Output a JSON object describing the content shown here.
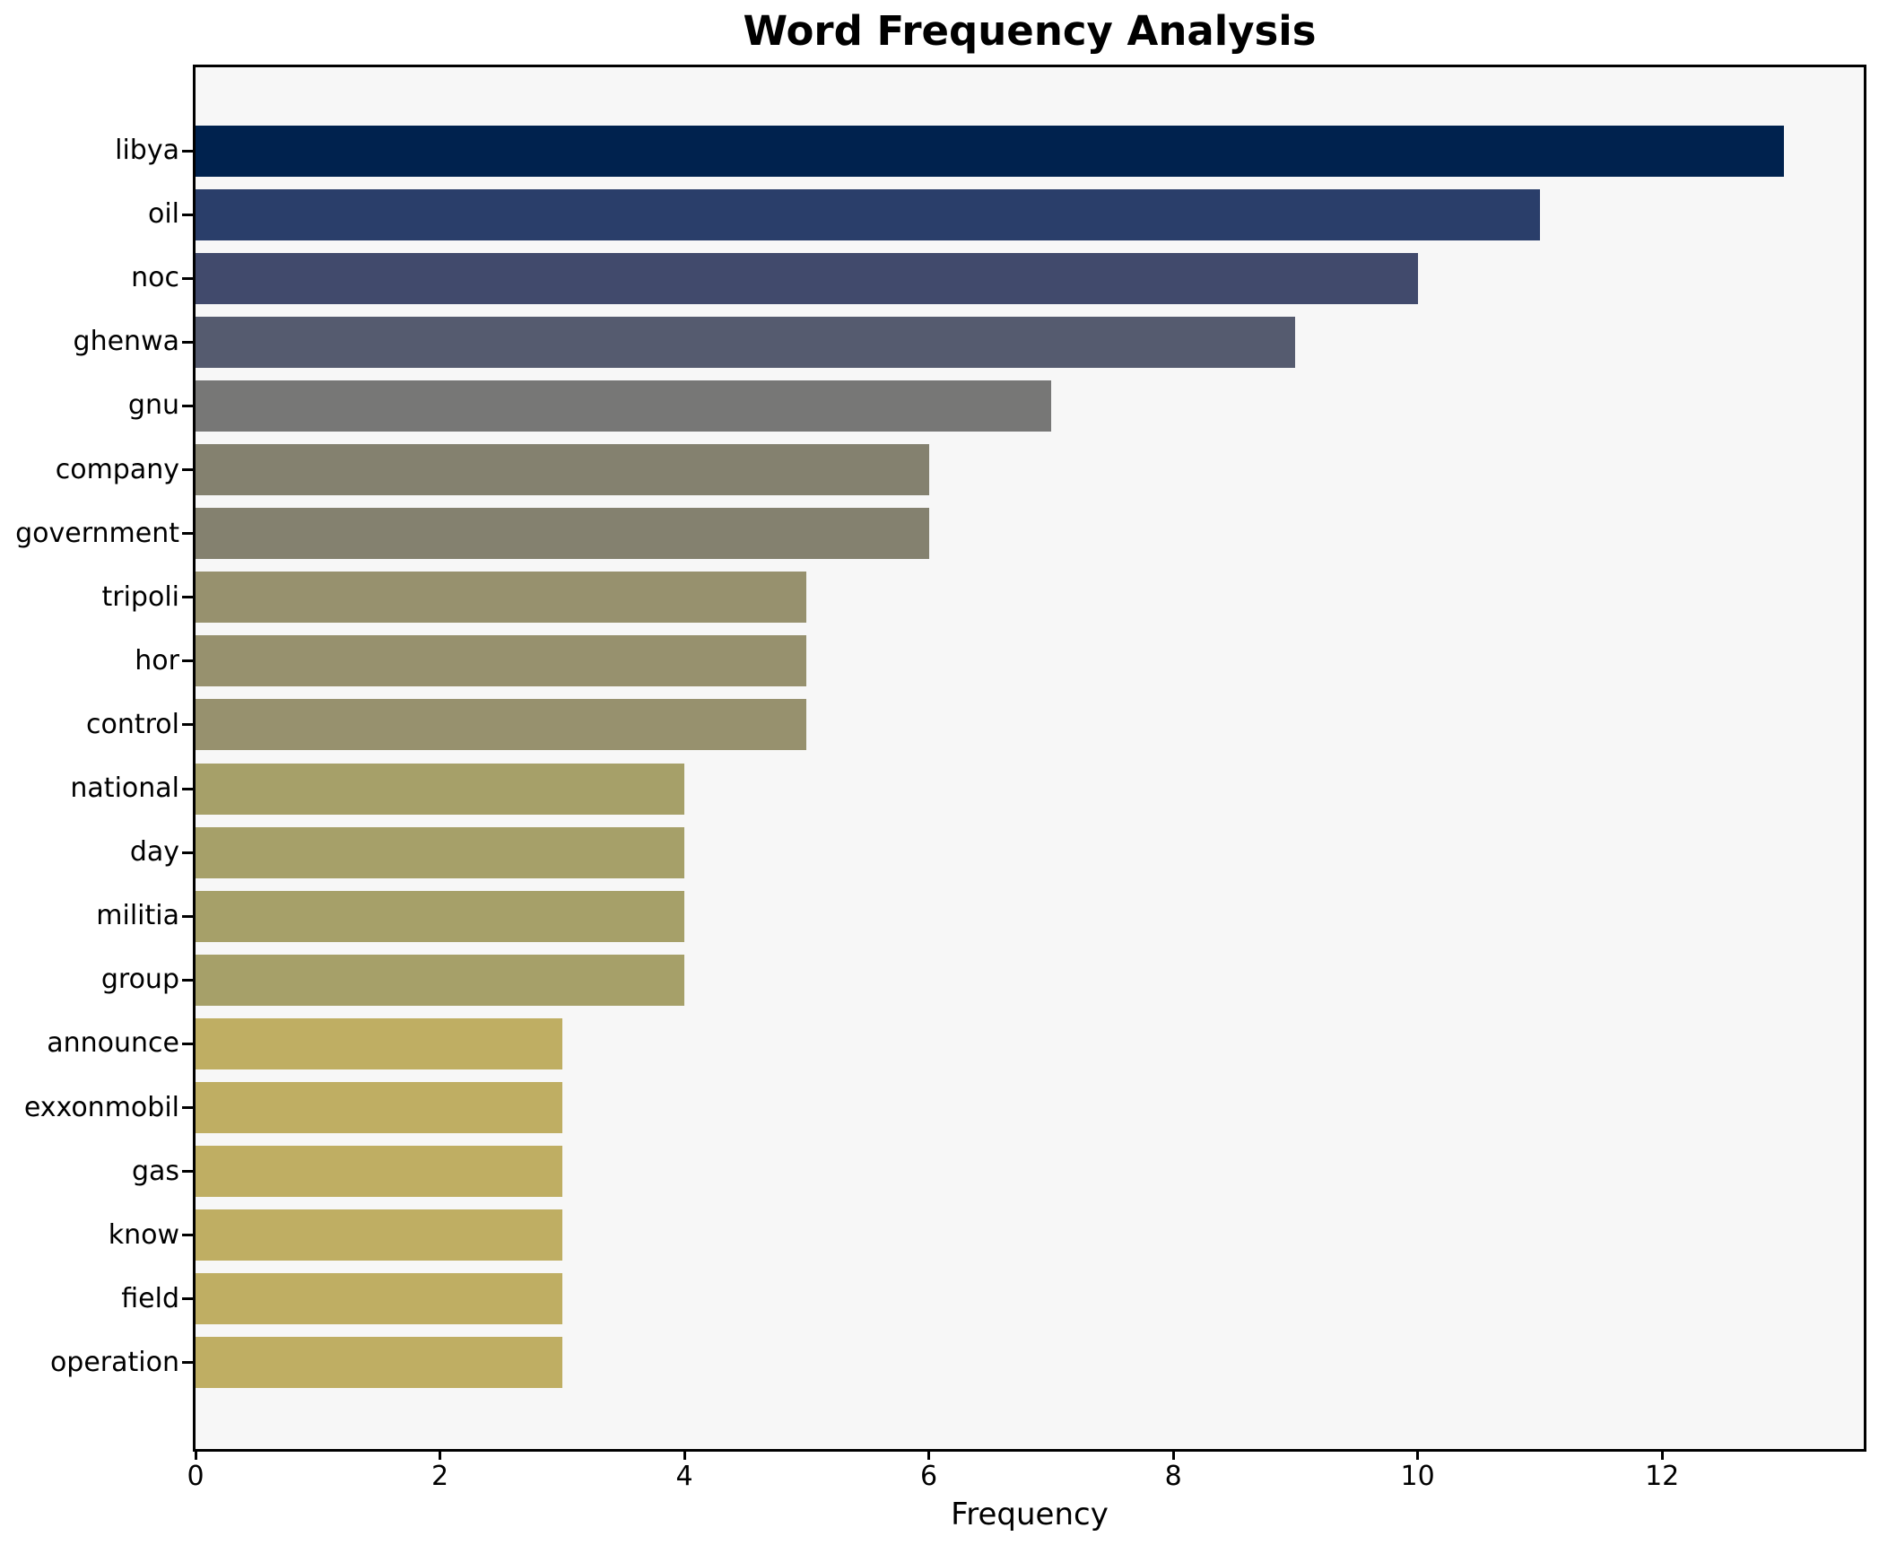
{
  "page": {
    "title": "Word Frequency Analysis"
  },
  "chart_data": {
    "type": "bar",
    "orientation": "horizontal",
    "title": "Word Frequency Analysis",
    "xlabel": "Frequency",
    "ylabel": "",
    "xlim": [
      0,
      13.65
    ],
    "xticks": [
      0,
      2,
      4,
      6,
      8,
      10,
      12
    ],
    "grid": false,
    "legend": false,
    "plot_background": "#f7f7f7",
    "figure_background": "#ffffff",
    "spine_color": "#000000",
    "categories": [
      "libya",
      "oil",
      "noc",
      "ghenwa",
      "gnu",
      "company",
      "government",
      "tripoli",
      "hor",
      "control",
      "national",
      "day",
      "militia",
      "group",
      "announce",
      "exxonmobil",
      "gas",
      "know",
      "field",
      "operation"
    ],
    "values": [
      13,
      11,
      10,
      9,
      7,
      6,
      6,
      5,
      5,
      5,
      4,
      4,
      4,
      4,
      3,
      3,
      3,
      3,
      3,
      3
    ],
    "bar_colors": [
      "#00224e",
      "#2a3e6a",
      "#414a6c",
      "#555b6f",
      "#777776",
      "#84816f",
      "#84816f",
      "#97916e",
      "#97916e",
      "#97916e",
      "#a6a069",
      "#a6a069",
      "#a6a069",
      "#a6a069",
      "#bfae63",
      "#bfae63",
      "#bfae63",
      "#bfae63",
      "#bfae63",
      "#bfae63"
    ]
  }
}
